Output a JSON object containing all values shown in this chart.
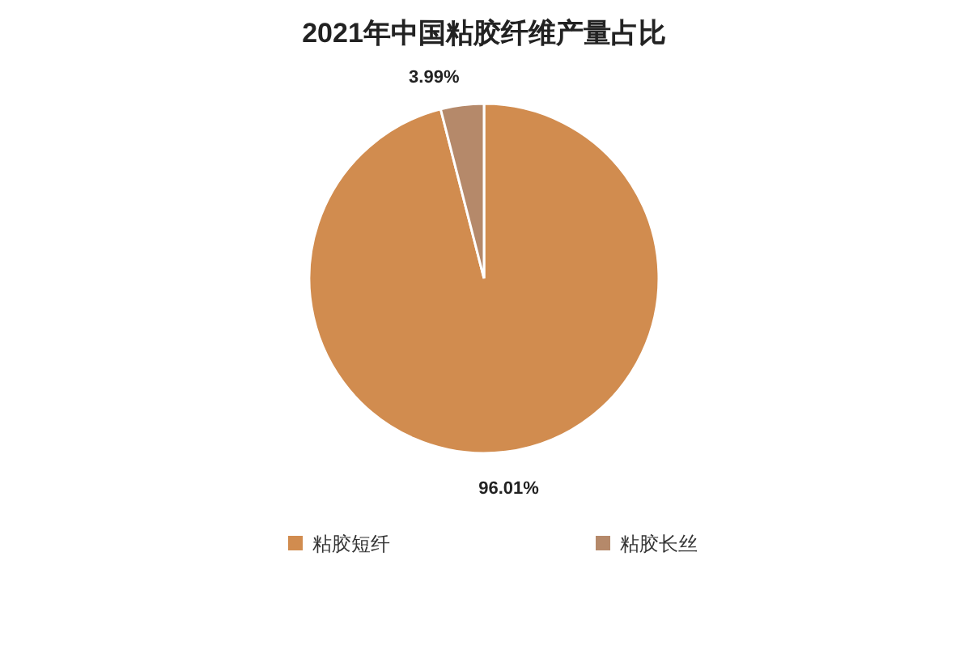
{
  "chart_data": {
    "type": "pie",
    "title": "2021年中国粘胶纤维产量占比",
    "categories": [
      "粘胶短纤",
      "粘胶长丝"
    ],
    "values": [
      96.01,
      3.99
    ],
    "colors": [
      "#d18c4f",
      "#b5896a"
    ],
    "value_labels": [
      "96.01%",
      "3.99%"
    ],
    "legend": "bottom"
  }
}
